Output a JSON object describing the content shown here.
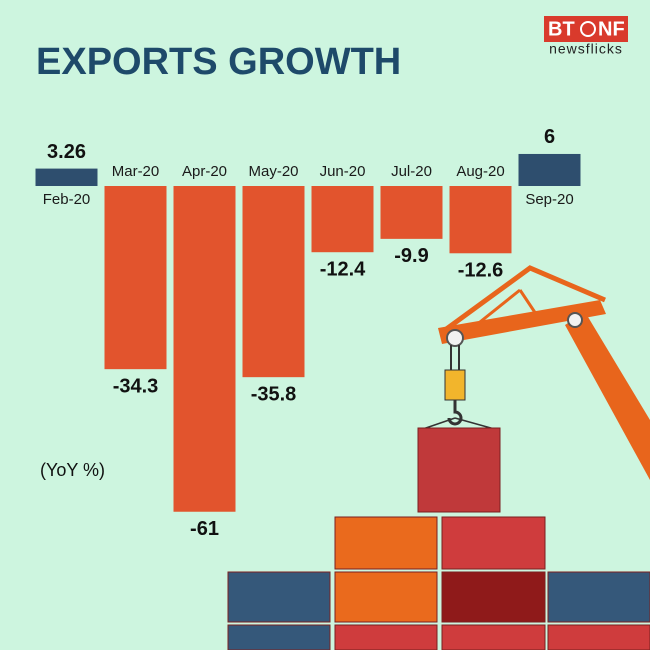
{
  "chart_data": {
    "type": "bar",
    "title": "EXPORTS GROWTH",
    "annotation": "(YoY %)",
    "categories": [
      "Feb-20",
      "Mar-20",
      "Apr-20",
      "May-20",
      "Jun-20",
      "Jul-20",
      "Aug-20",
      "Sep-20"
    ],
    "values": [
      3.26,
      -34.3,
      -61,
      -35.8,
      -12.4,
      -9.9,
      -12.6,
      6
    ],
    "positive_color": "#2e4e6e",
    "negative_color": "#e2542d"
  },
  "logo": [
    "BT",
    "NF",
    "newsflicks"
  ]
}
